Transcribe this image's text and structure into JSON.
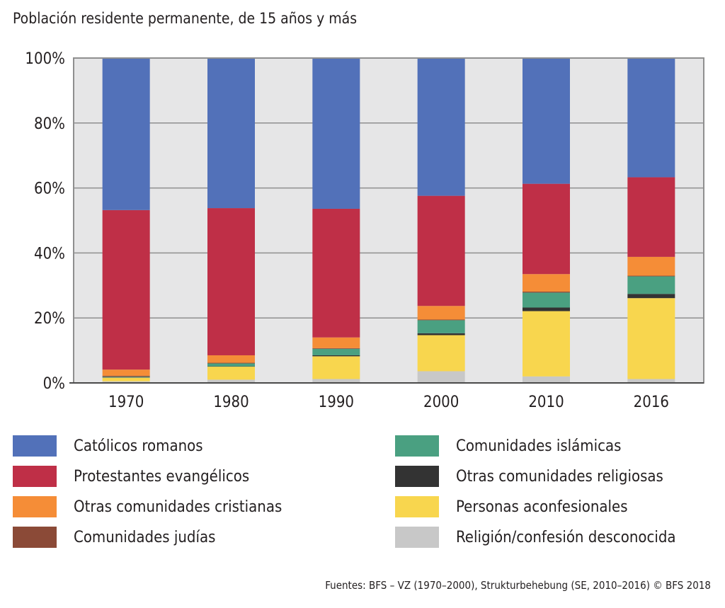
{
  "subtitle": "Población residente permanente, de 15 años y más",
  "source": "Fuentes: BFS – VZ (1970–2000), Strukturbehebung (SE, 2010–2016)   © BFS 2018",
  "chart_data": {
    "type": "bar",
    "stacked": true,
    "title": "",
    "subtitle": "Población residente permanente, de 15 años y más",
    "xlabel": "",
    "ylabel": "",
    "ylim": [
      0,
      100
    ],
    "yticks": [
      "0%",
      "20%",
      "40%",
      "60%",
      "80%",
      "100%"
    ],
    "grid": true,
    "legend_position": "bottom",
    "categories": [
      "1970",
      "1980",
      "1990",
      "2000",
      "2010",
      "2016"
    ],
    "series": [
      {
        "name": "Religión/confesión desconocida",
        "color": "#c8c8c8",
        "values": [
          0.5,
          1.0,
          1.2,
          3.6,
          2.0,
          1.2
        ]
      },
      {
        "name": "Personas aconfesionales",
        "color": "#f8d64e",
        "values": [
          1.1,
          4.0,
          7.0,
          11.1,
          20.1,
          24.9
        ]
      },
      {
        "name": "Otras comunidades religiosas",
        "color": "#333333",
        "values": [
          0.1,
          0.1,
          0.3,
          0.6,
          1.1,
          1.3
        ]
      },
      {
        "name": "Comunidades islámicas",
        "color": "#4aa081",
        "values": [
          0.2,
          0.9,
          2.0,
          4.0,
          4.6,
          5.4
        ]
      },
      {
        "name": "Comunidades judías",
        "color": "#8b4a37",
        "values": [
          0.3,
          0.2,
          0.2,
          0.2,
          0.3,
          0.2
        ]
      },
      {
        "name": "Otras comunidades cristianas",
        "color": "#f58d37",
        "values": [
          1.9,
          2.3,
          3.3,
          4.2,
          5.4,
          5.8
        ]
      },
      {
        "name": "Protestantes evangélicos",
        "color": "#bf2f47",
        "values": [
          49.1,
          45.3,
          39.6,
          33.9,
          27.8,
          24.5
        ]
      },
      {
        "name": "Católicos romanos",
        "color": "#5271b9",
        "values": [
          46.8,
          46.2,
          46.4,
          42.4,
          38.7,
          36.7
        ]
      }
    ]
  },
  "legend": {
    "left": [
      {
        "label": "Católicos romanos",
        "color": "#5271b9"
      },
      {
        "label": "Protestantes evangélicos",
        "color": "#bf2f47"
      },
      {
        "label": "Otras comunidades cristianas",
        "color": "#f58d37"
      },
      {
        "label": "Comunidades judías",
        "color": "#8b4a37"
      }
    ],
    "right": [
      {
        "label": "Comunidades islámicas",
        "color": "#4aa081"
      },
      {
        "label": "Otras comunidades religiosas",
        "color": "#333333"
      },
      {
        "label": "Personas aconfesionales",
        "color": "#f8d64e"
      },
      {
        "label": "Religión/confesión desconocida",
        "color": "#c8c8c8"
      }
    ]
  }
}
